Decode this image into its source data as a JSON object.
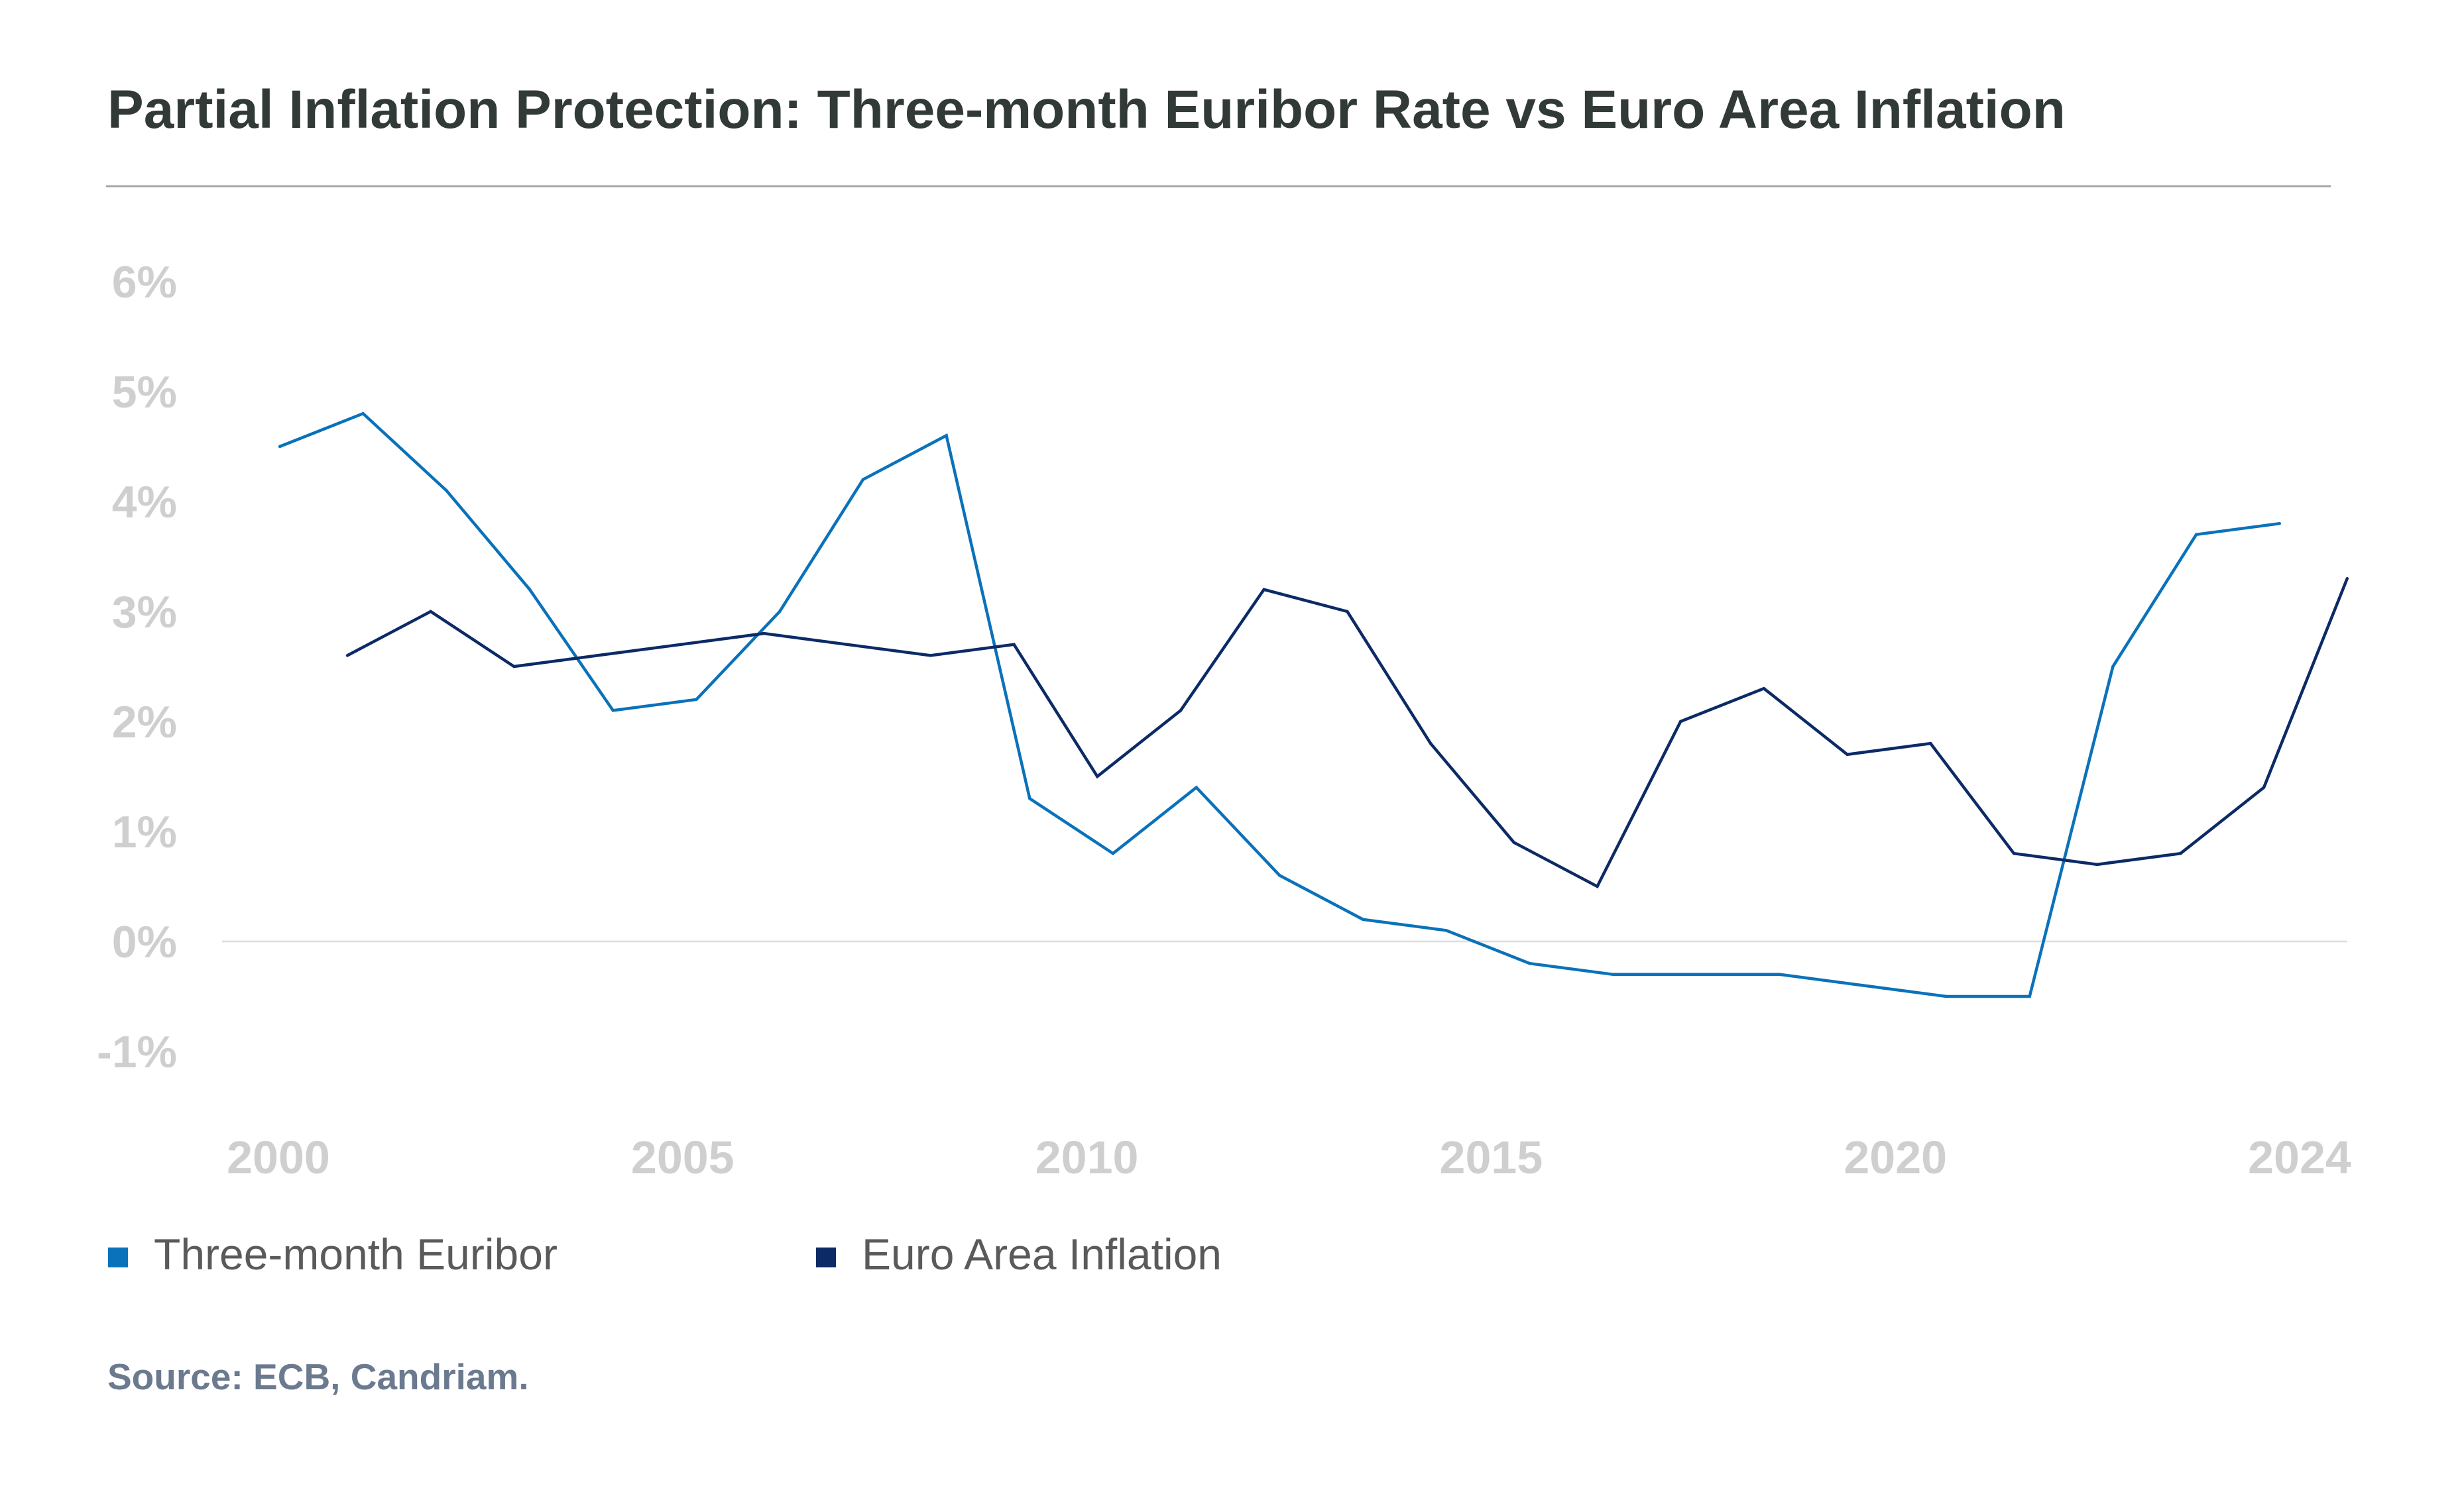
{
  "chart_data": {
    "type": "line",
    "title": "Partial Inflation Protection: Three-month Euribor Rate vs Euro Area Inflation",
    "xlabel": "",
    "ylabel": "",
    "x": [
      2000,
      2001,
      2002,
      2003,
      2004,
      2005,
      2006,
      2007,
      2008,
      2009,
      2010,
      2011,
      2012,
      2013,
      2014,
      2015,
      2016,
      2017,
      2018,
      2019,
      2020,
      2021,
      2022,
      2023,
      2024
    ],
    "x_tick_labels": [
      "2000",
      "2005",
      "2010",
      "2015",
      "2020",
      "2024"
    ],
    "y_ticks": [
      6,
      5,
      4,
      3,
      2,
      1,
      0,
      -1
    ],
    "y_tick_labels": [
      "6%",
      "5%",
      "4%",
      "3%",
      "2%",
      "1%",
      "0%",
      "-1%"
    ],
    "ylim": [
      -1,
      6
    ],
    "grid": "zero line only",
    "legend_position": "bottom-left",
    "series": [
      {
        "name": "Three-month Euribor",
        "color": "#0a72ba",
        "values": [
          4.5,
          4.8,
          4.1,
          3.2,
          2.1,
          2.2,
          3.0,
          4.2,
          4.6,
          1.3,
          0.8,
          1.4,
          0.6,
          0.2,
          0.1,
          -0.2,
          -0.3,
          -0.3,
          -0.3,
          -0.4,
          -0.5,
          -0.5,
          2.5,
          3.7,
          3.8
        ]
      },
      {
        "name": "Euro Area Inflation",
        "color": "#0c2a66",
        "values": [
          2.6,
          3.0,
          2.5,
          2.6,
          2.7,
          2.8,
          2.7,
          2.6,
          2.7,
          1.5,
          2.1,
          3.2,
          3.0,
          1.8,
          0.9,
          0.5,
          2.0,
          2.3,
          1.7,
          1.8,
          0.8,
          0.7,
          0.8,
          1.4,
          3.3
        ]
      }
    ],
    "source": "Source: ECB, Candriam."
  }
}
